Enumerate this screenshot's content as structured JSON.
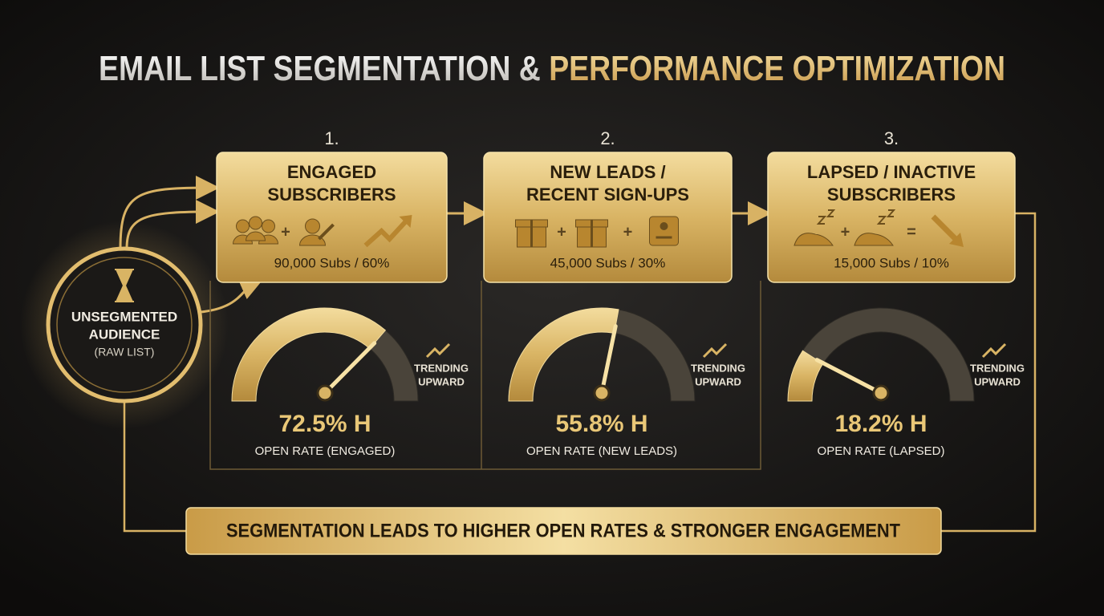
{
  "title": {
    "lead": "EMAIL LIST SEGMENTATION & ",
    "accent": "PERFORMANCE OPTIMIZATION"
  },
  "source": {
    "label": [
      "UNSEGMENTED",
      "AUDIENCE"
    ],
    "note": "(RAW LIST)"
  },
  "segments": [
    {
      "number": "1.",
      "label": [
        "ENGAGED",
        "SUBSCRIBERS"
      ],
      "operators": [
        "+"
      ],
      "stat": "90,000 Subs / 60%",
      "open_rate": {
        "value": 72.5,
        "label": "72.5% H"
      },
      "metric_label": "OPEN RATE (ENGAGED)",
      "trend": [
        "TRENDING",
        "UPWARD"
      ]
    },
    {
      "number": "2.",
      "label": [
        "NEW LEADS /",
        "RECENT SIGN-UPS"
      ],
      "operators": [
        "+",
        "+"
      ],
      "stat": "45,000 Subs / 30%",
      "open_rate": {
        "value": 55.8,
        "label": "55.8% H"
      },
      "metric_label": "OPEN RATE (NEW LEADS)",
      "trend": [
        "TRENDING",
        "UPWARD"
      ]
    },
    {
      "number": "3.",
      "label": [
        "LAPSED / INACTIVE",
        "SUBSCRIBERS"
      ],
      "operators": [
        "+",
        "="
      ],
      "stat": "15,000 Subs / 10%",
      "open_rate": {
        "value": 18.2,
        "label": "18.2% H"
      },
      "metric_label": "OPEN RATE (LAPSED)",
      "trend": [
        "TRENDING",
        "UPWARD"
      ]
    }
  ],
  "footer": "SEGMENTATION LEADS TO HIGHER OPEN RATES & STRONGER ENGAGEMENT"
}
